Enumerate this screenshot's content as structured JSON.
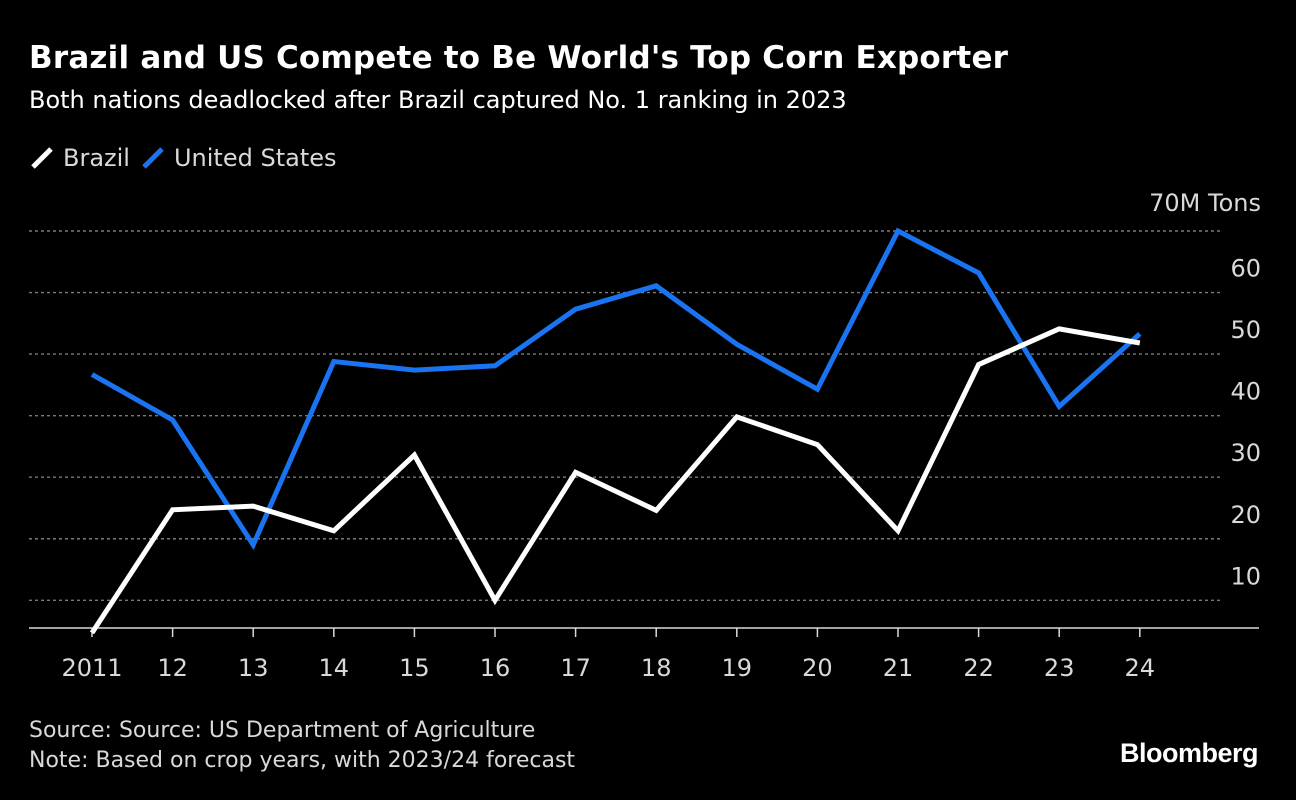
{
  "header": {
    "title": "Brazil and US Compete to Be World's Top Corn Exporter",
    "subtitle": "Both nations deadlocked after Brazil captured No. 1 ranking in 2023"
  },
  "legend": [
    {
      "label": "Brazil",
      "color": "#ffffff"
    },
    {
      "label": "United States",
      "color": "#1a73f0"
    }
  ],
  "chart_data": {
    "type": "line",
    "title": "Brazil and US Compete to Be World's Top Corn Exporter",
    "subtitle": "Both nations deadlocked after Brazil captured No. 1 ranking in 2023",
    "xlabel": "",
    "ylabel": "",
    "categories": [
      "2011",
      "12",
      "13",
      "14",
      "15",
      "16",
      "17",
      "18",
      "19",
      "20",
      "21",
      "22",
      "23",
      "24"
    ],
    "y_ticks": [
      10,
      20,
      30,
      40,
      50,
      60
    ],
    "y_unit_label": "70M Tons",
    "ylim": [
      5.5,
      70
    ],
    "grid": true,
    "grid_style": "dotted",
    "legend_position": "top-left",
    "series": [
      {
        "name": "Brazil",
        "color": "#ffffff",
        "values": [
          4.7,
          24.7,
          25.3,
          21.3,
          33.6,
          10.0,
          30.8,
          24.6,
          39.8,
          35.3,
          21.3,
          48.3,
          54.1,
          51.8
        ]
      },
      {
        "name": "United States",
        "color": "#1a73f0",
        "values": [
          46.7,
          39.3,
          19.0,
          48.8,
          47.4,
          48.1,
          57.3,
          61.1,
          51.6,
          44.3,
          70.0,
          63.2,
          41.5,
          53.3
        ]
      }
    ]
  },
  "footer": {
    "source": "Source: Source: US Department of Agriculture",
    "note": "Note: Based on crop years, with 2023/24 forecast"
  },
  "brand": {
    "name": "Bloomberg"
  }
}
